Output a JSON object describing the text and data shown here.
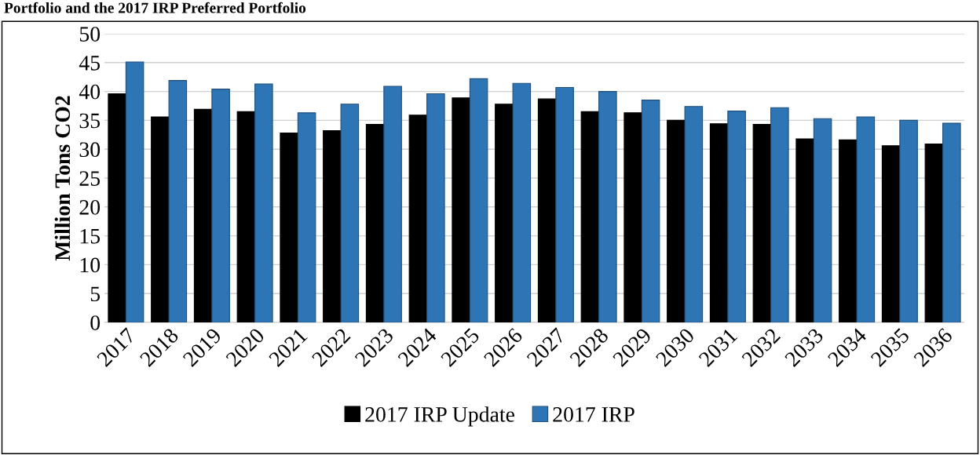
{
  "chart_data": {
    "type": "bar",
    "title": "Portfolio and the 2017 IRP Preferred Portfolio",
    "ylabel": "Million Tons CO2",
    "categories": [
      "2017",
      "2018",
      "2019",
      "2020",
      "2021",
      "2022",
      "2023",
      "2024",
      "2025",
      "2026",
      "2027",
      "2028",
      "2029",
      "2030",
      "2031",
      "2032",
      "2033",
      "2034",
      "2035",
      "2036"
    ],
    "series": [
      {
        "name": "2017 IRP Update",
        "color": "#000000",
        "values": [
          39.6,
          35.6,
          36.9,
          36.5,
          32.8,
          33.2,
          34.3,
          35.9,
          38.9,
          37.8,
          38.7,
          36.5,
          36.3,
          35.0,
          34.4,
          34.3,
          31.8,
          31.6,
          30.6,
          30.9
        ]
      },
      {
        "name": "2017 IRP",
        "color": "#2e75b6",
        "values": [
          45.1,
          41.9,
          40.4,
          41.3,
          36.3,
          37.8,
          40.9,
          39.6,
          42.2,
          41.4,
          40.7,
          40.0,
          38.5,
          37.4,
          36.6,
          37.2,
          35.3,
          35.6,
          35.0,
          34.5
        ]
      }
    ],
    "ylim": [
      0,
      50
    ],
    "yticks": [
      0,
      5,
      10,
      15,
      20,
      25,
      30,
      35,
      40,
      45,
      50
    ],
    "grid": "y",
    "legend": "bottom"
  }
}
